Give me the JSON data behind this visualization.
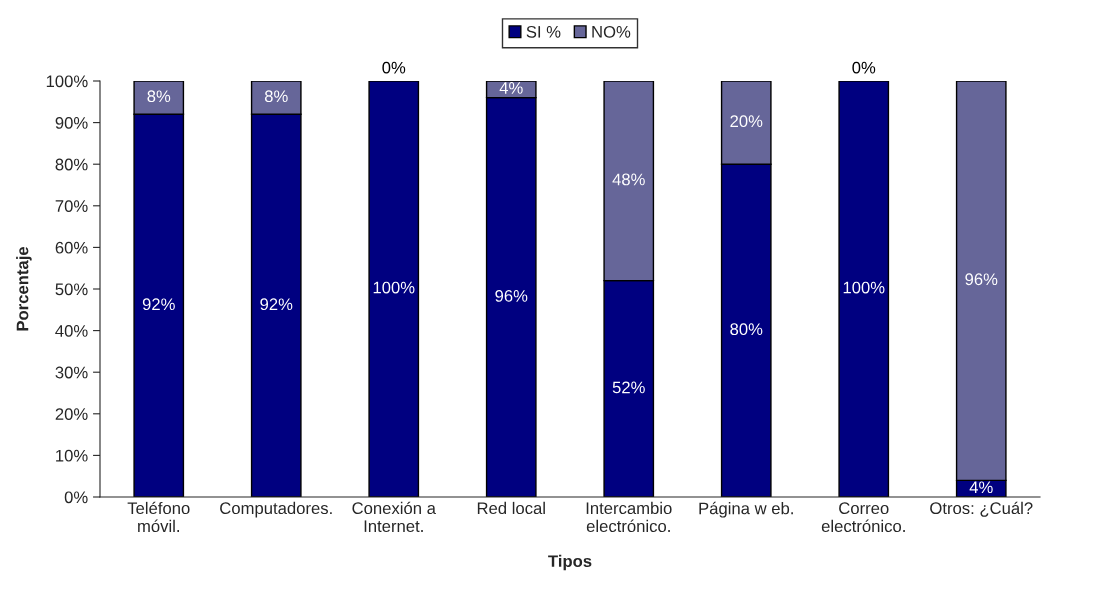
{
  "chart_data": {
    "type": "bar",
    "stacked": true,
    "legend": "top",
    "grid": false,
    "xlabel": "Tipos",
    "ylabel": "Porcentaje",
    "categories": [
      "Teléfono\nmóvil.",
      "Computadores.",
      "Conexión a\nInternet.",
      "Red local",
      "Intercambio\nelectrónico.",
      "Página w eb.",
      "Correo\nelectrónico.",
      "Otros: ¿Cuál?"
    ],
    "ylim": [
      0,
      100
    ],
    "yticks": [
      {
        "value": 0,
        "label": "0%"
      },
      {
        "value": 10,
        "label": "10%"
      },
      {
        "value": 20,
        "label": "20%"
      },
      {
        "value": 30,
        "label": "30%"
      },
      {
        "value": 40,
        "label": "40%"
      },
      {
        "value": 50,
        "label": "50%"
      },
      {
        "value": 60,
        "label": "60%"
      },
      {
        "value": 70,
        "label": "70%"
      },
      {
        "value": 80,
        "label": "80%"
      },
      {
        "value": 90,
        "label": "90%"
      },
      {
        "value": 100,
        "label": "100%"
      }
    ],
    "series": [
      {
        "name": "SI %",
        "color": "#000080",
        "values": [
          92,
          92,
          100,
          96,
          52,
          80,
          100,
          4
        ],
        "value_labels": [
          "92%",
          "92%",
          "100%",
          "96%",
          "52%",
          "80%",
          "100%",
          "4%"
        ]
      },
      {
        "name": "NO%",
        "color": "#666699",
        "values": [
          8,
          8,
          0,
          4,
          48,
          20,
          0,
          96
        ],
        "value_labels": [
          "8%",
          "8%",
          "0%",
          "4%",
          "48%",
          "20%",
          "0%",
          "96%"
        ]
      }
    ]
  }
}
